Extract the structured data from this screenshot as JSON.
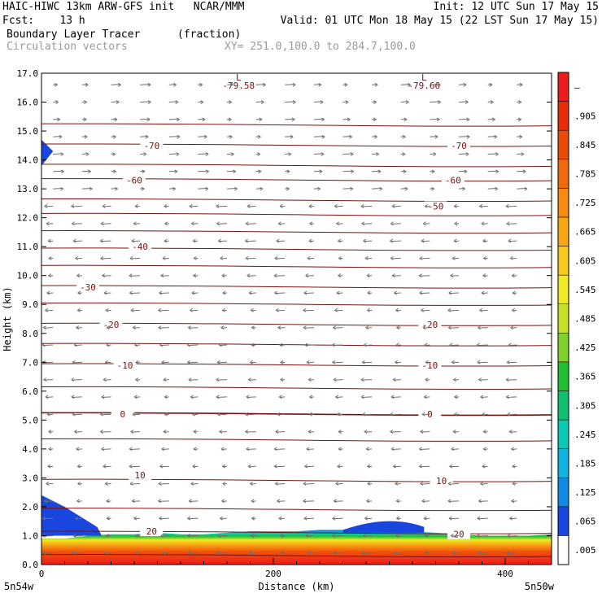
{
  "header": {
    "model_line": "HAIC-HIWC 13km ARW-GFS init   NCAR/MMM",
    "init_line": "Init: 12 UTC Sun 17 May 15",
    "fcst_line": "Fcst:    13 h",
    "valid_line": "Valid: 01 UTC Mon 18 May 15 (22 LST Sun 17 May 15)",
    "field_name": "Boundary Layer Tracer",
    "field_unit": "(fraction)",
    "vector_name": "Circulation vectors",
    "xy_range": "XY= 251.0,100.0 to 284.7,100.0"
  },
  "chart_data": {
    "type": "cross-section",
    "xlabel": "Distance (km)",
    "ylabel": "Height (km)",
    "xlim": [
      0,
      440
    ],
    "ylim": [
      0,
      17
    ],
    "x_ticks": [
      "0",
      "200",
      "400"
    ],
    "x_tick_values": [
      0,
      200,
      400
    ],
    "y_ticks": [
      "0.0",
      "1.0",
      "2.0",
      "3.0",
      "4.0",
      "5.0",
      "6.0",
      "7.0",
      "8.0",
      "9.0",
      "10.0",
      "11.0",
      "12.0",
      "13.0",
      "14.0",
      "15.0",
      "16.0",
      "17.0"
    ],
    "x_endpoints": {
      "left": "5n54w",
      "right": "5n50w"
    },
    "colorbar": {
      "labels": [
        ".005",
        ".065",
        ".125",
        ".185",
        ".245",
        ".305",
        ".365",
        ".425",
        ".485",
        ".545",
        ".605",
        ".665",
        ".725",
        ".785",
        ".845",
        ".905",
        "–"
      ],
      "colors": [
        "#ffffff",
        "#1a46e0",
        "#0f8ce8",
        "#11b3e0",
        "#0cc9b4",
        "#10c070",
        "#20c030",
        "#7fd22a",
        "#c8e028",
        "#f0ea22",
        "#f8c81c",
        "#f8a814",
        "#f88a10",
        "#f06a0c",
        "#ec4a08",
        "#e82c06",
        "#ee1c1c"
      ]
    },
    "contour_labels": [
      {
        "text": "-70",
        "x": 95,
        "y": 14.5
      },
      {
        "text": "-70",
        "x": 360,
        "y": 14.5
      },
      {
        "text": "-60",
        "x": 80,
        "y": 13.3
      },
      {
        "text": "-60",
        "x": 355,
        "y": 13.3
      },
      {
        "text": "-50",
        "x": 340,
        "y": 12.4
      },
      {
        "text": "-40",
        "x": 85,
        "y": 11.0
      },
      {
        "text": "-30",
        "x": 40,
        "y": 9.6
      },
      {
        "text": "-20",
        "x": 60,
        "y": 8.3
      },
      {
        "text": "-20",
        "x": 335,
        "y": 8.3
      },
      {
        "text": "-10",
        "x": 72,
        "y": 6.9
      },
      {
        "text": "-10",
        "x": 335,
        "y": 6.9
      },
      {
        "text": "0",
        "x": 70,
        "y": 5.2
      },
      {
        "text": "0",
        "x": 335,
        "y": 5.2
      },
      {
        "text": "10",
        "x": 85,
        "y": 3.1
      },
      {
        "text": "10",
        "x": 345,
        "y": 2.9
      },
      {
        "text": "20",
        "x": 95,
        "y": 1.15
      },
      {
        "text": "20",
        "x": 360,
        "y": 1.05
      }
    ],
    "low_markers": [
      {
        "symbol": "L",
        "value": "-79.58",
        "x": 170
      },
      {
        "symbol": "L",
        "value": "-79.66",
        "x": 330
      }
    ],
    "tracer_top_km": [
      0.9,
      0.9,
      1.0,
      1.05,
      1.05,
      1.1,
      1.05,
      1.05,
      1.1,
      1.15,
      1.15,
      1.15,
      1.2,
      1.2,
      1.25,
      1.2,
      1.15,
      1.1,
      1.05,
      1.0,
      1.0,
      1.0,
      1.05
    ],
    "tracer_x_km": [
      0,
      20,
      40,
      60,
      80,
      100,
      120,
      140,
      160,
      180,
      200,
      220,
      240,
      260,
      280,
      300,
      320,
      340,
      360,
      380,
      400,
      420,
      440
    ],
    "colors": {
      "contour": "#7a1010",
      "vector": "#6e6e6e",
      "frame": "#000000"
    }
  }
}
